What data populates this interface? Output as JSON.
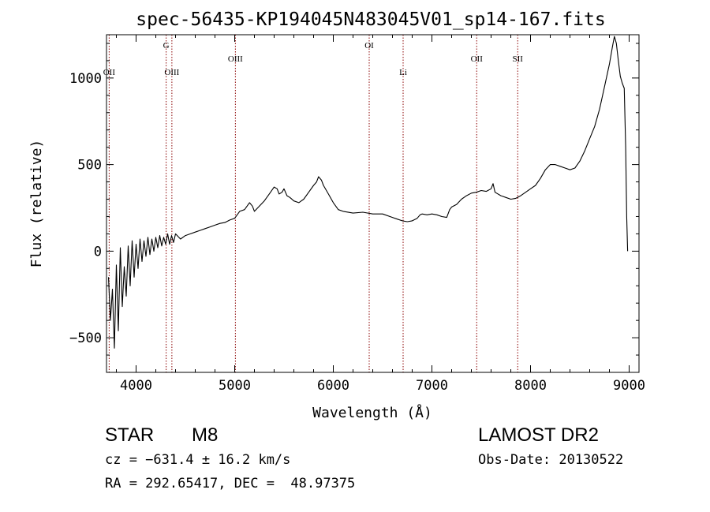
{
  "chart_data": {
    "type": "line",
    "title": "spec-56435-KP194045N483045V01_sp14-167.fits",
    "xlabel": "Wavelength (Å)",
    "ylabel": "Flux (relative)",
    "xlim": [
      3700,
      9100
    ],
    "ylim": [
      -700,
      1250
    ],
    "xticks": [
      4000,
      5000,
      6000,
      7000,
      8000,
      9000
    ],
    "yticks": [
      -500,
      0,
      500,
      1000
    ],
    "xtick_labels": [
      "4000",
      "5000",
      "6000",
      "7000",
      "8000",
      "9000"
    ],
    "ytick_labels": [
      "−500",
      "0",
      "500",
      "1000"
    ],
    "grid": false,
    "line_color": "#000000",
    "marker_color": "#8b0000",
    "markers": [
      {
        "label": "OII",
        "x": 3727,
        "row": 3
      },
      {
        "label": "G",
        "x": 4305,
        "row": 1
      },
      {
        "label": "OIII",
        "x": 4363,
        "row": 3
      },
      {
        "label": "OIII",
        "x": 5007,
        "row": 2
      },
      {
        "label": "OI",
        "x": 6364,
        "row": 1
      },
      {
        "label": "Li",
        "x": 6708,
        "row": 3
      },
      {
        "label": "OII",
        "x": 7454,
        "row": 2
      },
      {
        "label": "SII",
        "x": 7870,
        "row": 2
      }
    ],
    "series": [
      {
        "values": [
          [
            3720,
            -150
          ],
          [
            3740,
            -400
          ],
          [
            3760,
            -220
          ],
          [
            3780,
            -560
          ],
          [
            3800,
            -80
          ],
          [
            3820,
            -460
          ],
          [
            3840,
            20
          ],
          [
            3860,
            -320
          ],
          [
            3880,
            -90
          ],
          [
            3900,
            -260
          ],
          [
            3920,
            30
          ],
          [
            3940,
            -200
          ],
          [
            3960,
            60
          ],
          [
            3980,
            -150
          ],
          [
            4000,
            40
          ],
          [
            4020,
            -100
          ],
          [
            4040,
            70
          ],
          [
            4060,
            -60
          ],
          [
            4080,
            60
          ],
          [
            4100,
            -30
          ],
          [
            4120,
            80
          ],
          [
            4140,
            -20
          ],
          [
            4160,
            70
          ],
          [
            4180,
            0
          ],
          [
            4200,
            80
          ],
          [
            4220,
            20
          ],
          [
            4240,
            90
          ],
          [
            4260,
            30
          ],
          [
            4280,
            80
          ],
          [
            4300,
            40
          ],
          [
            4320,
            100
          ],
          [
            4340,
            40
          ],
          [
            4360,
            90
          ],
          [
            4380,
            50
          ],
          [
            4400,
            100
          ],
          [
            4450,
            70
          ],
          [
            4500,
            90
          ],
          [
            4550,
            100
          ],
          [
            4600,
            110
          ],
          [
            4650,
            120
          ],
          [
            4700,
            130
          ],
          [
            4750,
            140
          ],
          [
            4800,
            150
          ],
          [
            4850,
            160
          ],
          [
            4900,
            165
          ],
          [
            4950,
            180
          ],
          [
            5000,
            190
          ],
          [
            5050,
            230
          ],
          [
            5100,
            240
          ],
          [
            5150,
            280
          ],
          [
            5180,
            260
          ],
          [
            5200,
            230
          ],
          [
            5250,
            260
          ],
          [
            5300,
            290
          ],
          [
            5350,
            330
          ],
          [
            5400,
            370
          ],
          [
            5430,
            360
          ],
          [
            5450,
            330
          ],
          [
            5480,
            340
          ],
          [
            5500,
            360
          ],
          [
            5530,
            320
          ],
          [
            5560,
            310
          ],
          [
            5600,
            290
          ],
          [
            5650,
            280
          ],
          [
            5700,
            300
          ],
          [
            5750,
            340
          ],
          [
            5800,
            380
          ],
          [
            5830,
            400
          ],
          [
            5850,
            430
          ],
          [
            5880,
            410
          ],
          [
            5900,
            380
          ],
          [
            5950,
            330
          ],
          [
            6000,
            280
          ],
          [
            6050,
            240
          ],
          [
            6100,
            230
          ],
          [
            6200,
            220
          ],
          [
            6300,
            225
          ],
          [
            6400,
            215
          ],
          [
            6500,
            215
          ],
          [
            6600,
            195
          ],
          [
            6650,
            185
          ],
          [
            6700,
            175
          ],
          [
            6750,
            170
          ],
          [
            6800,
            175
          ],
          [
            6850,
            190
          ],
          [
            6880,
            210
          ],
          [
            6900,
            215
          ],
          [
            6950,
            210
          ],
          [
            7000,
            215
          ],
          [
            7050,
            210
          ],
          [
            7100,
            200
          ],
          [
            7150,
            195
          ],
          [
            7180,
            240
          ],
          [
            7200,
            255
          ],
          [
            7250,
            270
          ],
          [
            7300,
            300
          ],
          [
            7350,
            320
          ],
          [
            7400,
            335
          ],
          [
            7450,
            340
          ],
          [
            7500,
            350
          ],
          [
            7550,
            345
          ],
          [
            7600,
            360
          ],
          [
            7620,
            390
          ],
          [
            7640,
            340
          ],
          [
            7700,
            320
          ],
          [
            7750,
            310
          ],
          [
            7800,
            300
          ],
          [
            7850,
            305
          ],
          [
            7900,
            320
          ],
          [
            7950,
            340
          ],
          [
            8000,
            360
          ],
          [
            8050,
            380
          ],
          [
            8100,
            420
          ],
          [
            8150,
            470
          ],
          [
            8200,
            500
          ],
          [
            8250,
            500
          ],
          [
            8300,
            490
          ],
          [
            8350,
            480
          ],
          [
            8400,
            470
          ],
          [
            8450,
            480
          ],
          [
            8500,
            520
          ],
          [
            8550,
            580
          ],
          [
            8600,
            650
          ],
          [
            8650,
            720
          ],
          [
            8700,
            820
          ],
          [
            8750,
            950
          ],
          [
            8800,
            1080
          ],
          [
            8830,
            1180
          ],
          [
            8850,
            1240
          ],
          [
            8870,
            1200
          ],
          [
            8890,
            1100
          ],
          [
            8910,
            1010
          ],
          [
            8930,
            970
          ],
          [
            8950,
            940
          ],
          [
            8965,
            600
          ],
          [
            8975,
            200
          ],
          [
            8985,
            0
          ]
        ]
      }
    ]
  },
  "info": {
    "object_class": "STAR",
    "subclass": "M8",
    "cz_text": "cz = −631.4 ± 16.2 km/s",
    "coords_text": "RA = 292.65417, DEC =  48.97375",
    "survey": "LAMOST DR2",
    "obs_date_text": "Obs-Date: 20130522"
  }
}
